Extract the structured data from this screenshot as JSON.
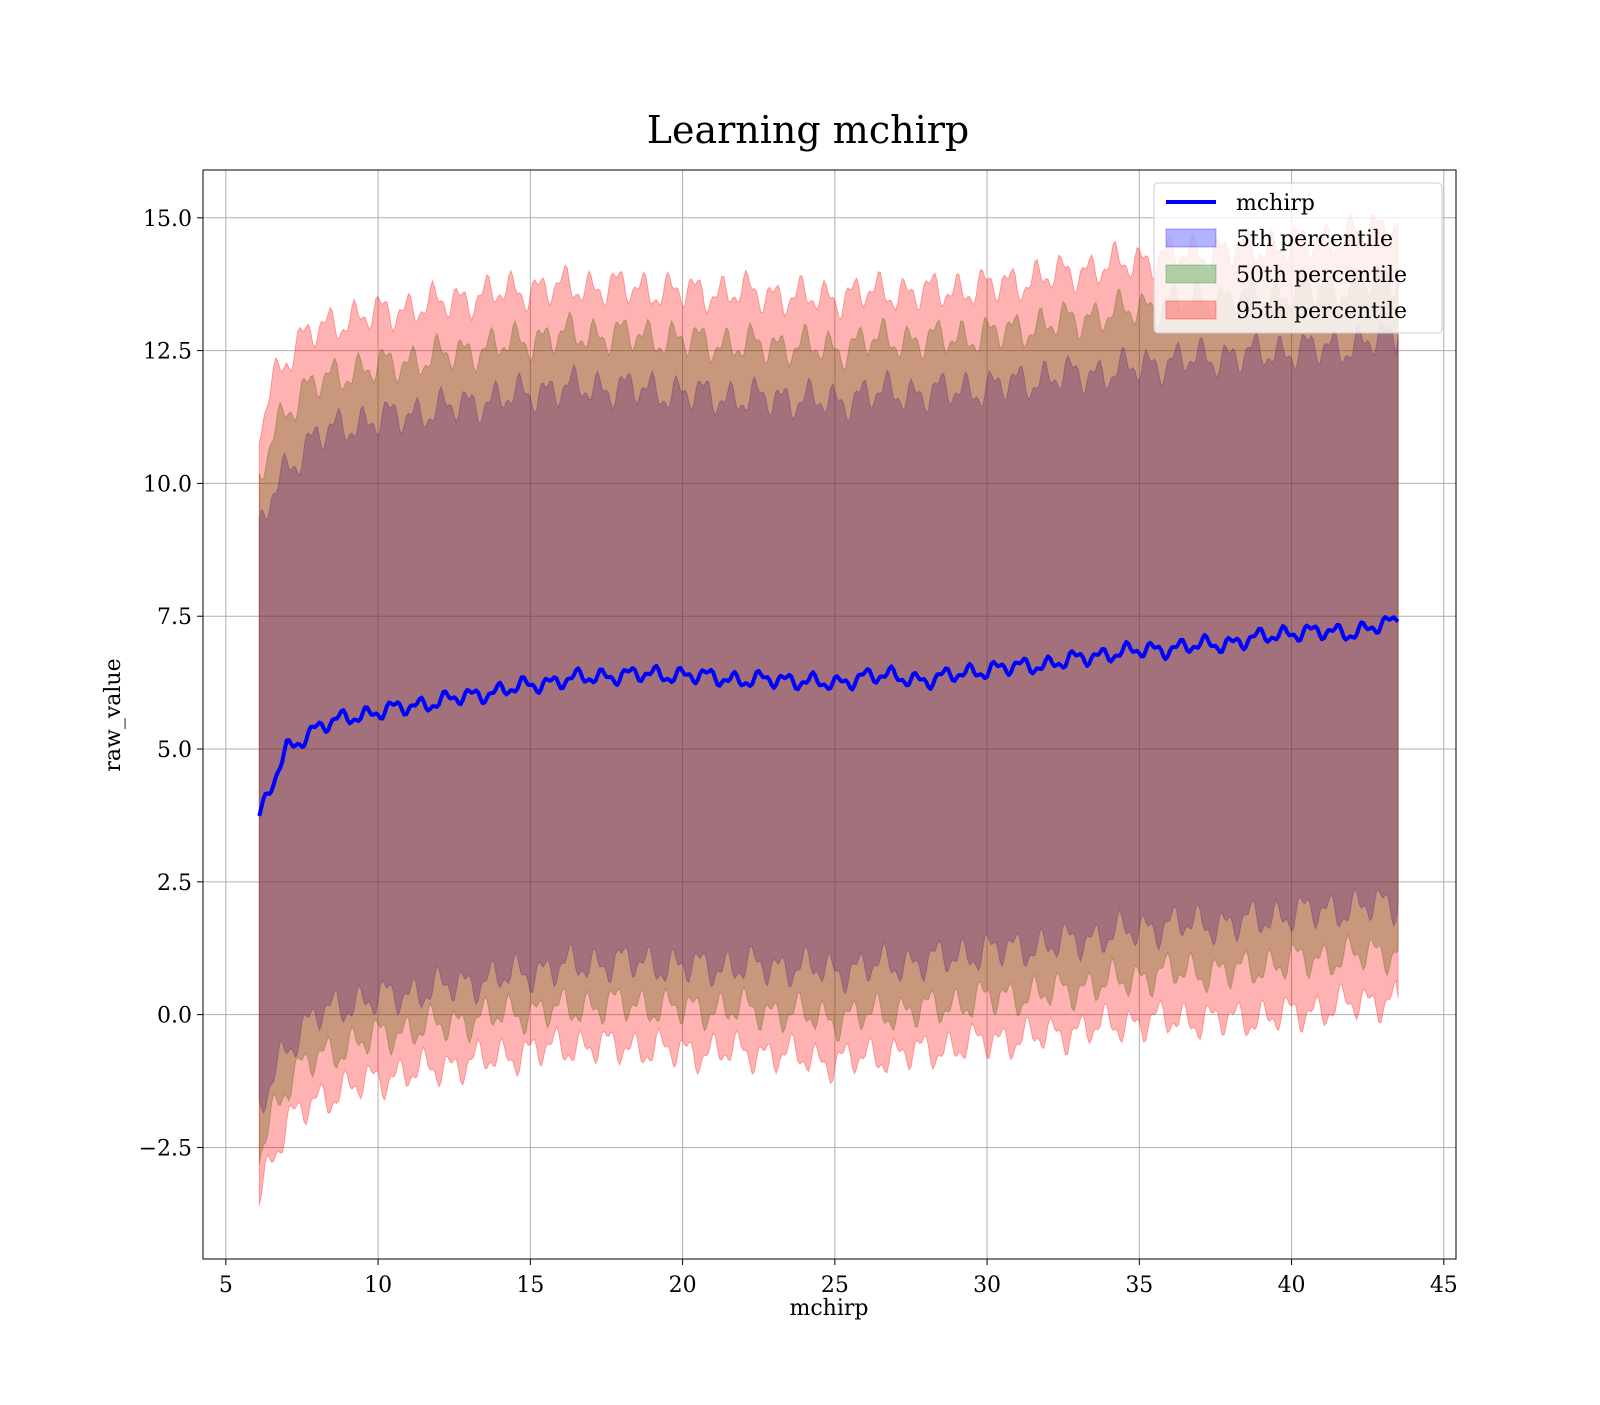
{
  "chart_data": {
    "type": "area",
    "title": "Learning mchirp",
    "xlabel": "mchirp",
    "ylabel": "raw_value",
    "xlim": [
      4.25,
      45.4
    ],
    "ylim": [
      -4.6,
      15.9
    ],
    "x_ticks": [
      5,
      10,
      15,
      20,
      25,
      30,
      35,
      40,
      45
    ],
    "x_tick_labels": [
      "5",
      "10",
      "15",
      "20",
      "25",
      "30",
      "35",
      "40",
      "45"
    ],
    "y_ticks": [
      -2.5,
      0.0,
      2.5,
      5.0,
      7.5,
      10.0,
      12.5,
      15.0
    ],
    "y_tick_labels": [
      "−2.5",
      "0.0",
      "2.5",
      "5.0",
      "7.5",
      "10.0",
      "12.5",
      "15.0"
    ],
    "grid": true,
    "legend_position": "top-right",
    "x": [
      6.1,
      6.5,
      7.0,
      7.5,
      8.0,
      9.0,
      10.0,
      12.0,
      14.0,
      16.0,
      18.0,
      20.0,
      22.0,
      24.0,
      25.0,
      26.0,
      28.0,
      30.0,
      32.0,
      34.0,
      36.0,
      38.0,
      40.0,
      42.0,
      43.5
    ],
    "series": [
      {
        "name": "mchirp",
        "kind": "line",
        "color": "#0000ff",
        "values": [
          3.7,
          4.3,
          5.0,
          5.2,
          5.4,
          5.6,
          5.7,
          5.9,
          6.1,
          6.3,
          6.4,
          6.4,
          6.3,
          6.3,
          6.2,
          6.4,
          6.3,
          6.5,
          6.6,
          6.8,
          6.9,
          7.0,
          7.2,
          7.2,
          7.4
        ]
      },
      {
        "name": "5th percentile",
        "kind": "band",
        "color": "#0000ff",
        "lower": [
          -1.9,
          -1.2,
          -0.6,
          -0.3,
          0.0,
          0.2,
          0.3,
          0.5,
          0.7,
          0.9,
          1.0,
          0.9,
          0.9,
          0.9,
          0.8,
          0.9,
          1.0,
          1.2,
          1.3,
          1.5,
          1.7,
          1.7,
          1.9,
          2.0,
          2.1
        ],
        "upper": [
          9.0,
          9.8,
          10.3,
          10.6,
          10.9,
          11.1,
          11.2,
          11.4,
          11.6,
          11.8,
          11.8,
          11.7,
          11.6,
          11.6,
          11.5,
          11.7,
          11.7,
          11.8,
          12.0,
          12.1,
          12.3,
          12.4,
          12.5,
          12.6,
          12.8
        ]
      },
      {
        "name": "50th percentile",
        "kind": "band",
        "color": "#008000",
        "lower": [
          -2.6,
          -1.9,
          -1.3,
          -1.0,
          -0.8,
          -0.6,
          -0.4,
          -0.2,
          0.0,
          0.1,
          0.2,
          0.1,
          0.1,
          0.0,
          -0.1,
          0.0,
          0.1,
          0.3,
          0.4,
          0.6,
          0.8,
          0.8,
          1.0,
          1.1,
          1.2
        ],
        "upper": [
          10.0,
          10.9,
          11.4,
          11.7,
          11.9,
          12.1,
          12.2,
          12.4,
          12.6,
          12.8,
          12.8,
          12.7,
          12.6,
          12.6,
          12.5,
          12.7,
          12.7,
          12.8,
          13.0,
          13.2,
          13.4,
          13.5,
          13.6,
          13.7,
          13.9
        ]
      },
      {
        "name": "95th percentile",
        "kind": "band",
        "color": "#ff0000",
        "lower": [
          -3.4,
          -2.7,
          -2.1,
          -1.8,
          -1.6,
          -1.4,
          -1.2,
          -1.0,
          -0.8,
          -0.6,
          -0.6,
          -0.7,
          -0.7,
          -0.8,
          -0.9,
          -0.8,
          -0.7,
          -0.5,
          -0.4,
          -0.2,
          -0.1,
          -0.1,
          0.0,
          0.2,
          0.3
        ],
        "upper": [
          11.0,
          11.9,
          12.4,
          12.7,
          12.9,
          13.1,
          13.2,
          13.4,
          13.6,
          13.7,
          13.7,
          13.6,
          13.6,
          13.5,
          13.5,
          13.6,
          13.6,
          13.7,
          13.9,
          14.1,
          14.3,
          14.4,
          14.5,
          14.7,
          14.9
        ]
      }
    ]
  }
}
